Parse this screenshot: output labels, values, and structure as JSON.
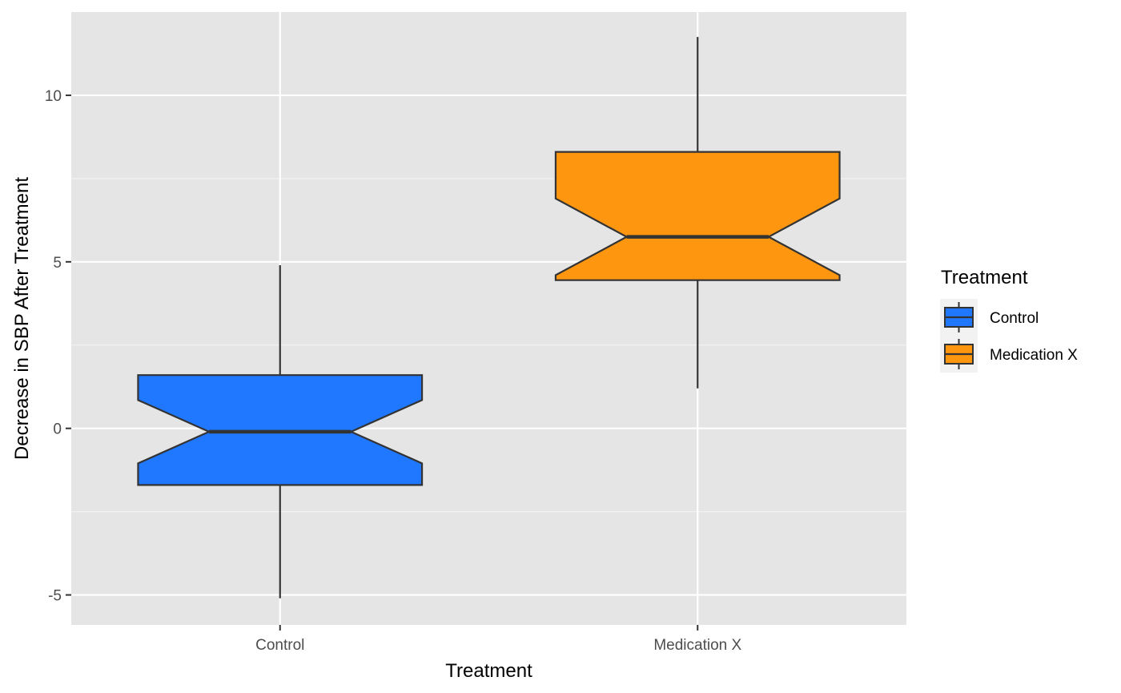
{
  "chart_data": {
    "type": "box",
    "notched": true,
    "title": "",
    "xlabel": "Treatment",
    "ylabel": "Decrease in SBP After Treatment",
    "ylim": [
      -5.9,
      12.5
    ],
    "yticks": [
      -5,
      0,
      5,
      10
    ],
    "ytick_labels": [
      "-5",
      "0",
      "5",
      "10"
    ],
    "grid": true,
    "legend": {
      "title": "Treatment",
      "position": "right"
    },
    "categories": [
      "Control",
      "Medication X"
    ],
    "boxes": [
      {
        "name": "Control",
        "color": "#1f78ff",
        "min": -5.1,
        "q1": -1.7,
        "median": -0.1,
        "q3": 1.6,
        "max": 4.9,
        "notch_low": -1.05,
        "notch_high": 0.85
      },
      {
        "name": "Medication X",
        "color": "#ff960f",
        "min": 1.2,
        "q1": 4.45,
        "median": 5.75,
        "q3": 8.3,
        "max": 11.75,
        "notch_low": 4.6,
        "notch_high": 6.9
      }
    ]
  }
}
